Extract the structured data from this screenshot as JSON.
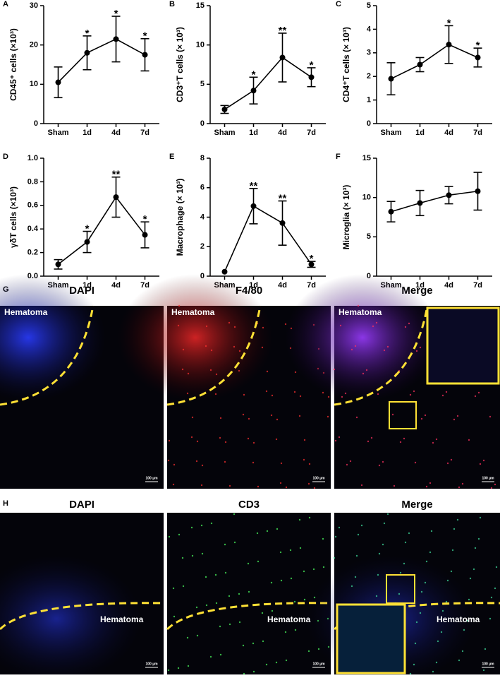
{
  "chart_data": [
    {
      "type": "line",
      "panel_label": "A",
      "y_label": "CD45⁺ cells (×10³)",
      "categories": [
        "Sham",
        "1d",
        "4d",
        "7d"
      ],
      "values": [
        10.5,
        18,
        21.5,
        17.5
      ],
      "errors": [
        3.9,
        4.3,
        5.8,
        4.1
      ],
      "significance": [
        null,
        "*",
        "*",
        "*"
      ],
      "ylim": [
        0,
        30
      ],
      "yticks": [
        0,
        10,
        20,
        30
      ],
      "color": "#000000"
    },
    {
      "type": "line",
      "panel_label": "B",
      "y_label": "CD3⁺T cells (× 10³)",
      "categories": [
        "Sham",
        "1d",
        "4d",
        "7d"
      ],
      "values": [
        1.8,
        4.2,
        8.4,
        5.9
      ],
      "errors": [
        0.5,
        1.7,
        3.1,
        1.2
      ],
      "significance": [
        null,
        "*",
        "**",
        "*"
      ],
      "ylim": [
        0,
        15
      ],
      "yticks": [
        0,
        5,
        10,
        15
      ],
      "color": "#000000"
    },
    {
      "type": "line",
      "panel_label": "C",
      "y_label": "CD4⁺T cells (× 10³)",
      "categories": [
        "Sham",
        "1d",
        "4d",
        "7d"
      ],
      "values": [
        1.9,
        2.5,
        3.35,
        2.8
      ],
      "errors": [
        0.68,
        0.3,
        0.8,
        0.4
      ],
      "significance": [
        null,
        null,
        "*",
        "*"
      ],
      "ylim": [
        0,
        5
      ],
      "yticks": [
        0,
        1,
        2,
        3,
        4,
        5
      ],
      "color": "#000000"
    },
    {
      "type": "line",
      "panel_label": "D",
      "y_label": "γδT cells (×10³)",
      "categories": [
        "Sham",
        "1d",
        "4d",
        "7d"
      ],
      "values": [
        0.1,
        0.29,
        0.67,
        0.35
      ],
      "errors": [
        0.04,
        0.09,
        0.17,
        0.11
      ],
      "significance": [
        null,
        "*",
        "**",
        "*"
      ],
      "ylim": [
        0,
        1
      ],
      "yticks": [
        {
          "value": 0,
          "label": "0.0"
        },
        0.2,
        0.4,
        0.6,
        0.8,
        {
          "value": 1,
          "label": "1.0"
        }
      ],
      "color": "#000000"
    },
    {
      "type": "line",
      "panel_label": "E",
      "y_label": "Macrophage (× 10³)",
      "categories": [
        "Sham",
        "1d",
        "4d",
        "7d"
      ],
      "values": [
        0.3,
        4.75,
        3.6,
        0.8
      ],
      "errors": [
        null,
        1.2,
        1.5,
        0.2
      ],
      "significance": [
        null,
        "**",
        "**",
        "*"
      ],
      "ylim": [
        0,
        8
      ],
      "yticks": [
        0,
        2,
        4,
        6,
        8
      ],
      "color": "#000000"
    },
    {
      "type": "line",
      "panel_label": "F",
      "y_label": "Microglia (× 10³)",
      "categories": [
        "Sham",
        "1d",
        "4d",
        "7d"
      ],
      "values": [
        8.2,
        9.3,
        10.3,
        10.8
      ],
      "errors": [
        1.3,
        1.6,
        1.1,
        2.4
      ],
      "significance": [
        null,
        null,
        null,
        null
      ],
      "ylim": [
        0,
        15
      ],
      "yticks": [
        0,
        5,
        10,
        15
      ],
      "color": "#000000"
    }
  ],
  "image_rows": [
    {
      "panel_label": "G",
      "panels": [
        {
          "title": "DAPI",
          "region_label": "Hematoma",
          "scale_bar": "100 µm"
        },
        {
          "title": "F4/80",
          "region_label": "Hematoma",
          "scale_bar": "100 µm"
        },
        {
          "title": "Merge",
          "region_label": "Hematoma",
          "scale_bar": "100 µm"
        }
      ]
    },
    {
      "panel_label": "H",
      "panels": [
        {
          "title": "DAPI",
          "region_label": "Hematoma",
          "scale_bar": "100 µm"
        },
        {
          "title": "CD3",
          "region_label": "Hematoma",
          "scale_bar": "100 µm"
        },
        {
          "title": "Merge",
          "region_label": "Hematoma",
          "scale_bar": "100 µm"
        }
      ]
    }
  ]
}
